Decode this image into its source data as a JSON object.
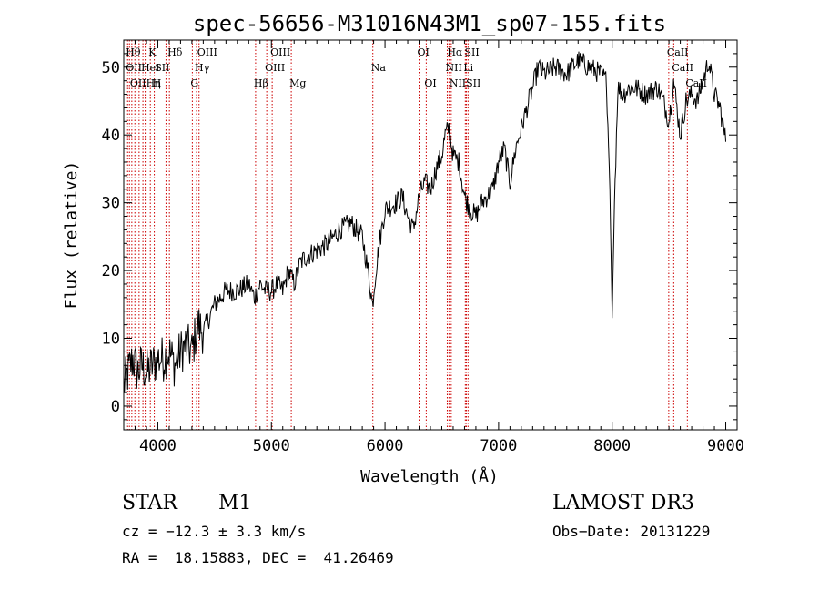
{
  "chart_data": {
    "type": "line",
    "title": "spec-56656-M31016N43M1_sp07-155.fits",
    "xlabel": "Wavelength (Å)",
    "ylabel": "Flux (relative)",
    "xlim": [
      3700,
      9100
    ],
    "ylim": [
      -3.5,
      54
    ],
    "xticks": [
      4000,
      5000,
      6000,
      7000,
      8000,
      9000
    ],
    "yticks": [
      0,
      10,
      20,
      30,
      40,
      50
    ],
    "series": [
      {
        "name": "flux",
        "x": [
          3700,
          3740,
          3780,
          3820,
          3860,
          3900,
          3950,
          4000,
          4050,
          4100,
          4150,
          4200,
          4250,
          4300,
          4350,
          4400,
          4450,
          4500,
          4600,
          4700,
          4800,
          4850,
          4900,
          4950,
          5000,
          5050,
          5100,
          5150,
          5200,
          5250,
          5300,
          5400,
          5500,
          5600,
          5700,
          5800,
          5850,
          5890,
          5920,
          5950,
          6000,
          6100,
          6150,
          6200,
          6250,
          6300,
          6350,
          6400,
          6450,
          6500,
          6530,
          6563,
          6600,
          6650,
          6700,
          6750,
          6800,
          6850,
          6900,
          6950,
          7000,
          7050,
          7100,
          7150,
          7200,
          7250,
          7300,
          7350,
          7400,
          7500,
          7600,
          7700,
          7800,
          7900,
          7950,
          7980,
          8000,
          8020,
          8050,
          8100,
          8150,
          8200,
          8300,
          8400,
          8450,
          8500,
          8540,
          8600,
          8650,
          8700,
          8750,
          8800,
          8850,
          8900,
          8950,
          9000
        ],
        "y": [
          3,
          5,
          7,
          5,
          6,
          5,
          6,
          7,
          7,
          8,
          6,
          8,
          9,
          8,
          12,
          11,
          13,
          15,
          17,
          17,
          18,
          16,
          18,
          17,
          17,
          18,
          17,
          20,
          18,
          21,
          22,
          23,
          24,
          26,
          27,
          25,
          20,
          15,
          20,
          24,
          29,
          30,
          31,
          28,
          26,
          31,
          33,
          32,
          35,
          37,
          40,
          41,
          37,
          36,
          31,
          29,
          28,
          30,
          31,
          32,
          36,
          38,
          33,
          38,
          41,
          44,
          47,
          50,
          49,
          50,
          49,
          51,
          50,
          49,
          48,
          32,
          13,
          30,
          47,
          46,
          47,
          47,
          46,
          47,
          45,
          42,
          48,
          40,
          45,
          46,
          45,
          48,
          51,
          46,
          44,
          39
        ]
      }
    ],
    "lines": [
      {
        "wl": 3734,
        "labels": [
          "Hθ",
          "OII"
        ]
      },
      {
        "wl": 3750,
        "labels": [
          "OII"
        ]
      },
      {
        "wl": 3771,
        "labels": [
          "Hη"
        ]
      },
      {
        "wl": 3798,
        "labels": [
          "Hη"
        ]
      },
      {
        "wl": 3835,
        "labels": [
          "Hη"
        ]
      },
      {
        "wl": 3869,
        "labels": [
          "HeI"
        ]
      },
      {
        "wl": 3889,
        "labels": [
          "Hη"
        ]
      },
      {
        "wl": 3934,
        "labels": [
          "K",
          "SII"
        ]
      },
      {
        "wl": 3969,
        "labels": [
          "H"
        ]
      },
      {
        "wl": 4072,
        "labels": [
          "SII"
        ]
      },
      {
        "wl": 4102,
        "labels": [
          "Hδ"
        ]
      },
      {
        "wl": 4304,
        "labels": [
          "G"
        ]
      },
      {
        "wl": 4341,
        "labels": [
          "Hγ"
        ]
      },
      {
        "wl": 4363,
        "labels": [
          "OIII"
        ]
      },
      {
        "wl": 4861,
        "labels": [
          "Hβ"
        ]
      },
      {
        "wl": 4959,
        "labels": [
          "OIII"
        ]
      },
      {
        "wl": 5007,
        "labels": [
          "OIII"
        ]
      },
      {
        "wl": 5175,
        "labels": [
          "Mg"
        ]
      },
      {
        "wl": 5893,
        "labels": [
          "Na"
        ]
      },
      {
        "wl": 6300,
        "labels": [
          "OI"
        ]
      },
      {
        "wl": 6363,
        "labels": [
          "OI"
        ]
      },
      {
        "wl": 6548,
        "labels": [
          "NII"
        ]
      },
      {
        "wl": 6563,
        "labels": [
          "Hα"
        ]
      },
      {
        "wl": 6583,
        "labels": [
          "NII"
        ]
      },
      {
        "wl": 6707,
        "labels": [
          "Li"
        ]
      },
      {
        "wl": 6716,
        "labels": [
          "SII"
        ]
      },
      {
        "wl": 6731,
        "labels": [
          "SII"
        ]
      },
      {
        "wl": 8498,
        "labels": [
          "CaII"
        ]
      },
      {
        "wl": 8542,
        "labels": [
          "CaII"
        ]
      },
      {
        "wl": 8662,
        "labels": [
          "CaII"
        ]
      }
    ],
    "line_label_rows": [
      {
        "text": "Hθ",
        "wl": 3734,
        "row": 0
      },
      {
        "text": "K",
        "wl": 3934,
        "row": 0
      },
      {
        "text": "Hδ",
        "wl": 4102,
        "row": 0
      },
      {
        "text": "OIII",
        "wl": 4363,
        "row": 0
      },
      {
        "text": "OIII",
        "wl": 5007,
        "row": 0
      },
      {
        "text": "OI",
        "wl": 6300,
        "row": 0
      },
      {
        "text": "Hα",
        "wl": 6563,
        "row": 0
      },
      {
        "text": "SII",
        "wl": 6716,
        "row": 0
      },
      {
        "text": "CaII",
        "wl": 8498,
        "row": 0
      },
      {
        "text": "OII",
        "wl": 3734,
        "row": 1
      },
      {
        "text": "HeI",
        "wl": 3869,
        "row": 1
      },
      {
        "text": "SII",
        "wl": 3990,
        "row": 1
      },
      {
        "text": "Hγ",
        "wl": 4341,
        "row": 1
      },
      {
        "text": "OIII",
        "wl": 4959,
        "row": 1
      },
      {
        "text": "Na",
        "wl": 5893,
        "row": 1
      },
      {
        "text": "NII",
        "wl": 6548,
        "row": 1
      },
      {
        "text": "Li",
        "wl": 6707,
        "row": 1
      },
      {
        "text": "CaII",
        "wl": 8542,
        "row": 1
      },
      {
        "text": "OIIHη",
        "wl": 3771,
        "row": 2
      },
      {
        "text": "H",
        "wl": 3969,
        "row": 2
      },
      {
        "text": "G",
        "wl": 4304,
        "row": 2
      },
      {
        "text": "Hβ",
        "wl": 4861,
        "row": 2
      },
      {
        "text": "Mg",
        "wl": 5175,
        "row": 2
      },
      {
        "text": "OI",
        "wl": 6363,
        "row": 2
      },
      {
        "text": "NIISII",
        "wl": 6583,
        "row": 2
      },
      {
        "text": "CaII",
        "wl": 8662,
        "row": 2
      }
    ]
  },
  "info": {
    "class": "STAR",
    "subclass": "M1",
    "survey": "LAMOST DR3",
    "cz": "cz = −12.3 ± 3.3 km/s",
    "obs_date": "Obs−Date: 20131229",
    "coords": "RA =  18.15883, DEC =  41.26469"
  },
  "colors": {
    "axis": "#000000",
    "spectrum": "#000000",
    "line_marker": "#cc0000"
  }
}
